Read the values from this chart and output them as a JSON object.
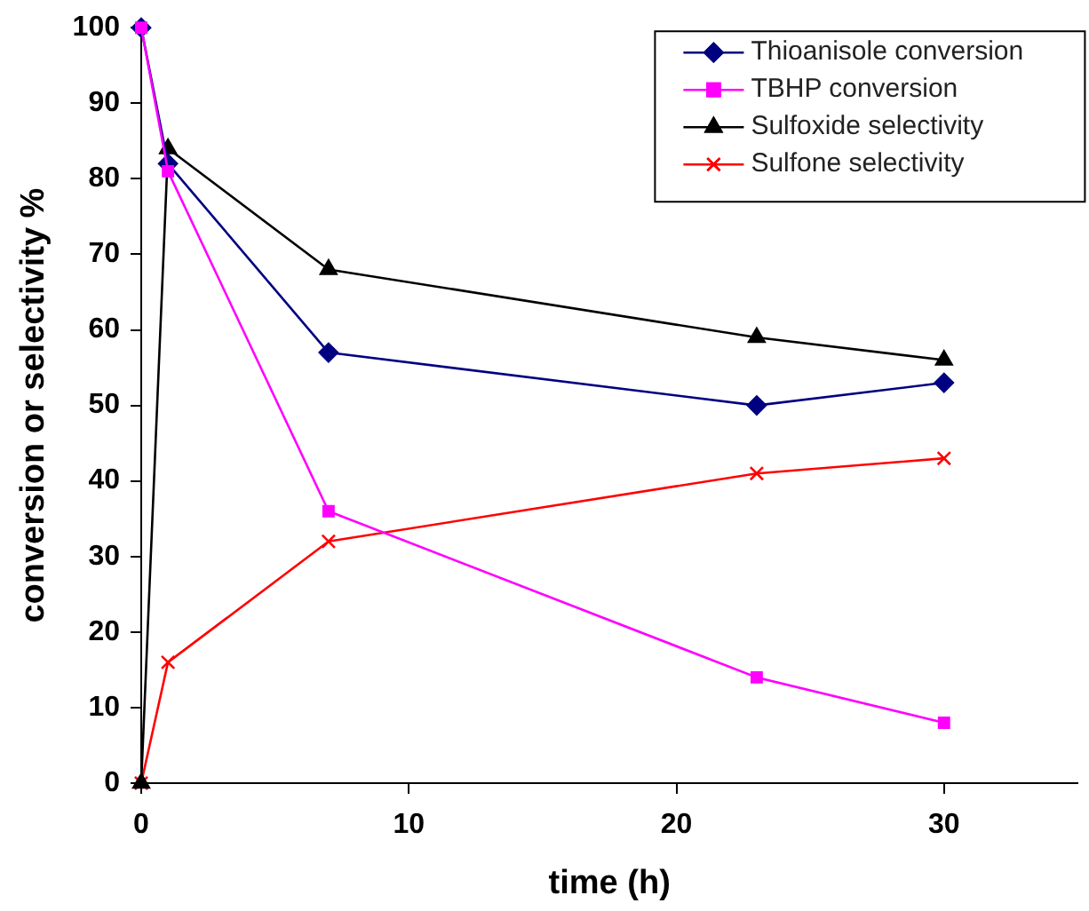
{
  "chart_data": {
    "type": "line",
    "xlabel": "time (h)",
    "ylabel": "conversion or selectivity %",
    "x": [
      0,
      1,
      7,
      23,
      30
    ],
    "series": [
      {
        "name": "Thioanisole conversion",
        "color": "#000080",
        "marker": "diamond",
        "values": [
          100,
          82,
          57,
          50,
          53
        ]
      },
      {
        "name": "TBHP conversion",
        "color": "#ff00ff",
        "marker": "square",
        "values": [
          100,
          81,
          36,
          14,
          8
        ]
      },
      {
        "name": "Sulfoxide selectivity",
        "color": "#000000",
        "marker": "triangle",
        "values": [
          0,
          84,
          68,
          59,
          56
        ]
      },
      {
        "name": "Sulfone selectivity",
        "color": "#ff0000",
        "marker": "cross",
        "values": [
          0,
          16,
          32,
          41,
          43
        ]
      }
    ],
    "xlim": [
      0,
      35
    ],
    "xticks": [
      0,
      10,
      20,
      30
    ],
    "ylim": [
      0,
      100
    ],
    "yticks": [
      0,
      10,
      20,
      30,
      40,
      50,
      60,
      70,
      80,
      90,
      100
    ],
    "grid": false,
    "legend": "top right",
    "line_style": "solid"
  }
}
